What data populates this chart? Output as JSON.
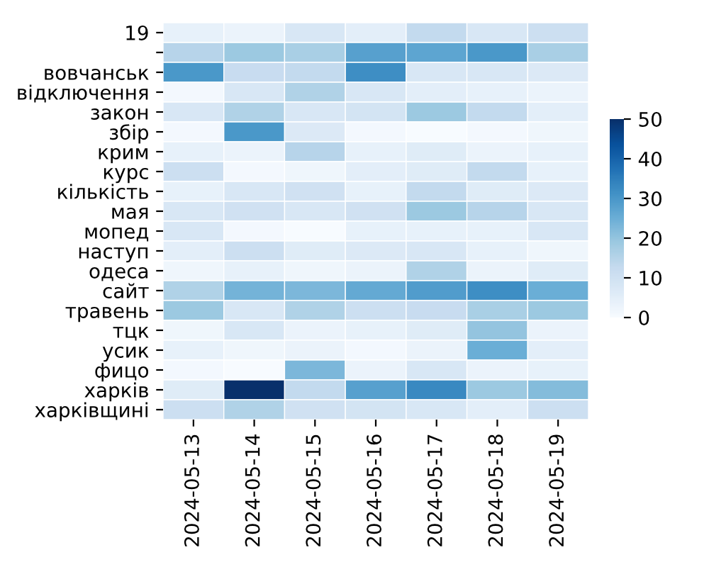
{
  "chart_data": {
    "type": "heatmap",
    "categories": [
      "2024-05-13",
      "2024-05-14",
      "2024-05-15",
      "2024-05-16",
      "2024-05-17",
      "2024-05-18",
      "2024-05-19"
    ],
    "y_categories": [
      "19",
      null,
      "вовчанськ",
      "відключення",
      "закон",
      "збір",
      "крим",
      "курс",
      "кількість",
      "мая",
      "мопед",
      "наступ",
      "одеса",
      "сайт",
      "травень",
      "тцк",
      "усик",
      "фицо",
      "харків",
      "харківщині"
    ],
    "cells": [
      [
        4,
        3,
        8,
        5,
        13,
        8,
        11
      ],
      [
        15,
        19,
        17,
        28,
        27,
        30,
        17
      ],
      [
        30,
        12,
        13,
        32,
        8,
        8,
        7
      ],
      [
        1,
        8,
        16,
        8,
        5,
        4,
        3
      ],
      [
        8,
        16,
        8,
        9,
        19,
        13,
        5
      ],
      [
        1,
        30,
        7,
        1,
        0,
        1,
        2
      ],
      [
        4,
        3,
        15,
        4,
        6,
        3,
        4
      ],
      [
        11,
        1,
        2,
        5,
        6,
        13,
        4
      ],
      [
        4,
        8,
        10,
        4,
        13,
        6,
        7
      ],
      [
        8,
        10,
        8,
        10,
        19,
        15,
        8
      ],
      [
        8,
        1,
        0,
        4,
        4,
        4,
        8
      ],
      [
        5,
        11,
        6,
        7,
        8,
        4,
        2
      ],
      [
        2,
        4,
        2,
        3,
        16,
        3,
        6
      ],
      [
        16,
        24,
        23,
        26,
        29,
        32,
        25
      ],
      [
        19,
        8,
        16,
        11,
        12,
        17,
        19
      ],
      [
        2,
        8,
        3,
        4,
        6,
        20,
        3
      ],
      [
        4,
        2,
        3,
        1,
        3,
        25,
        5
      ],
      [
        1,
        0,
        23,
        3,
        8,
        3,
        4
      ],
      [
        6,
        50,
        13,
        28,
        33,
        19,
        22
      ],
      [
        11,
        16,
        10,
        9,
        8,
        5,
        11
      ]
    ],
    "clim": [
      0,
      50
    ],
    "cticks": [
      0,
      10,
      20,
      30,
      40,
      50
    ]
  }
}
